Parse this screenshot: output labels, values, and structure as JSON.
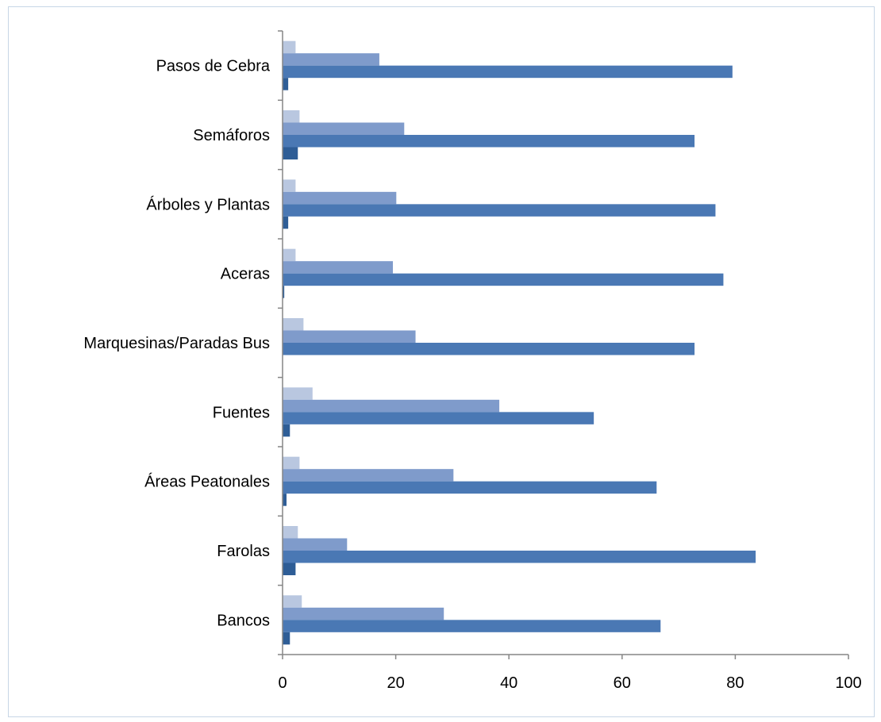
{
  "chart_data": {
    "type": "bar",
    "orientation": "horizontal",
    "categories": [
      "Bancos",
      "Farolas",
      "Áreas Peatonales",
      "Fuentes",
      "Marquesinas/Paradas Bus",
      "Aceras",
      "Árboles y Plantas",
      "Semáforos",
      "Pasos de Cebra"
    ],
    "series": [
      {
        "color": "#b9c7e0",
        "values": [
          3.4,
          2.7,
          3.0,
          5.3,
          3.7,
          2.3,
          2.3,
          3.0,
          2.3
        ]
      },
      {
        "color": "#7f9bcb",
        "values": [
          28.5,
          11.4,
          30.2,
          38.3,
          23.5,
          19.5,
          20.1,
          21.5,
          17.1
        ]
      },
      {
        "color": "#4a78b4",
        "values": [
          66.8,
          83.6,
          66.1,
          55.0,
          72.8,
          77.9,
          76.5,
          72.8,
          79.5
        ]
      },
      {
        "color": "#2e5d96",
        "values": [
          1.3,
          2.3,
          0.7,
          1.3,
          0.0,
          0.3,
          1.0,
          2.7,
          1.0
        ]
      }
    ],
    "xlim": [
      0,
      100
    ],
    "xticks": [
      0,
      20,
      40,
      60,
      80,
      100
    ],
    "xtick_labels": [
      "0",
      "20",
      "40",
      "60",
      "80",
      "100"
    ],
    "grid": false,
    "legend": false
  }
}
